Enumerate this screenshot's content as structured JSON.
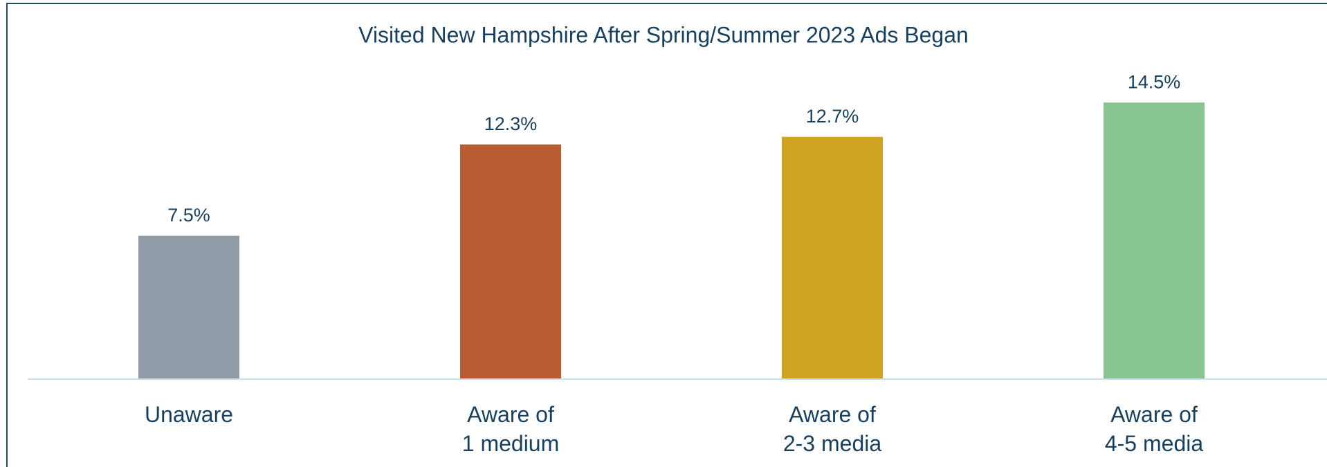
{
  "chart_data": {
    "type": "bar",
    "title": "Visited New Hampshire After Spring/Summer 2023 Ads Began",
    "categories": [
      "Unaware",
      "Aware of\n1 medium",
      "Aware of\n2-3 media",
      "Aware of\n4-5 media"
    ],
    "values": [
      7.5,
      12.3,
      12.7,
      14.5
    ],
    "value_labels": [
      "7.5%",
      "12.3%",
      "12.7%",
      "14.5%"
    ],
    "colors": [
      "#8f9ba6",
      "#b85c33",
      "#cfa424",
      "#88c48f"
    ]
  }
}
